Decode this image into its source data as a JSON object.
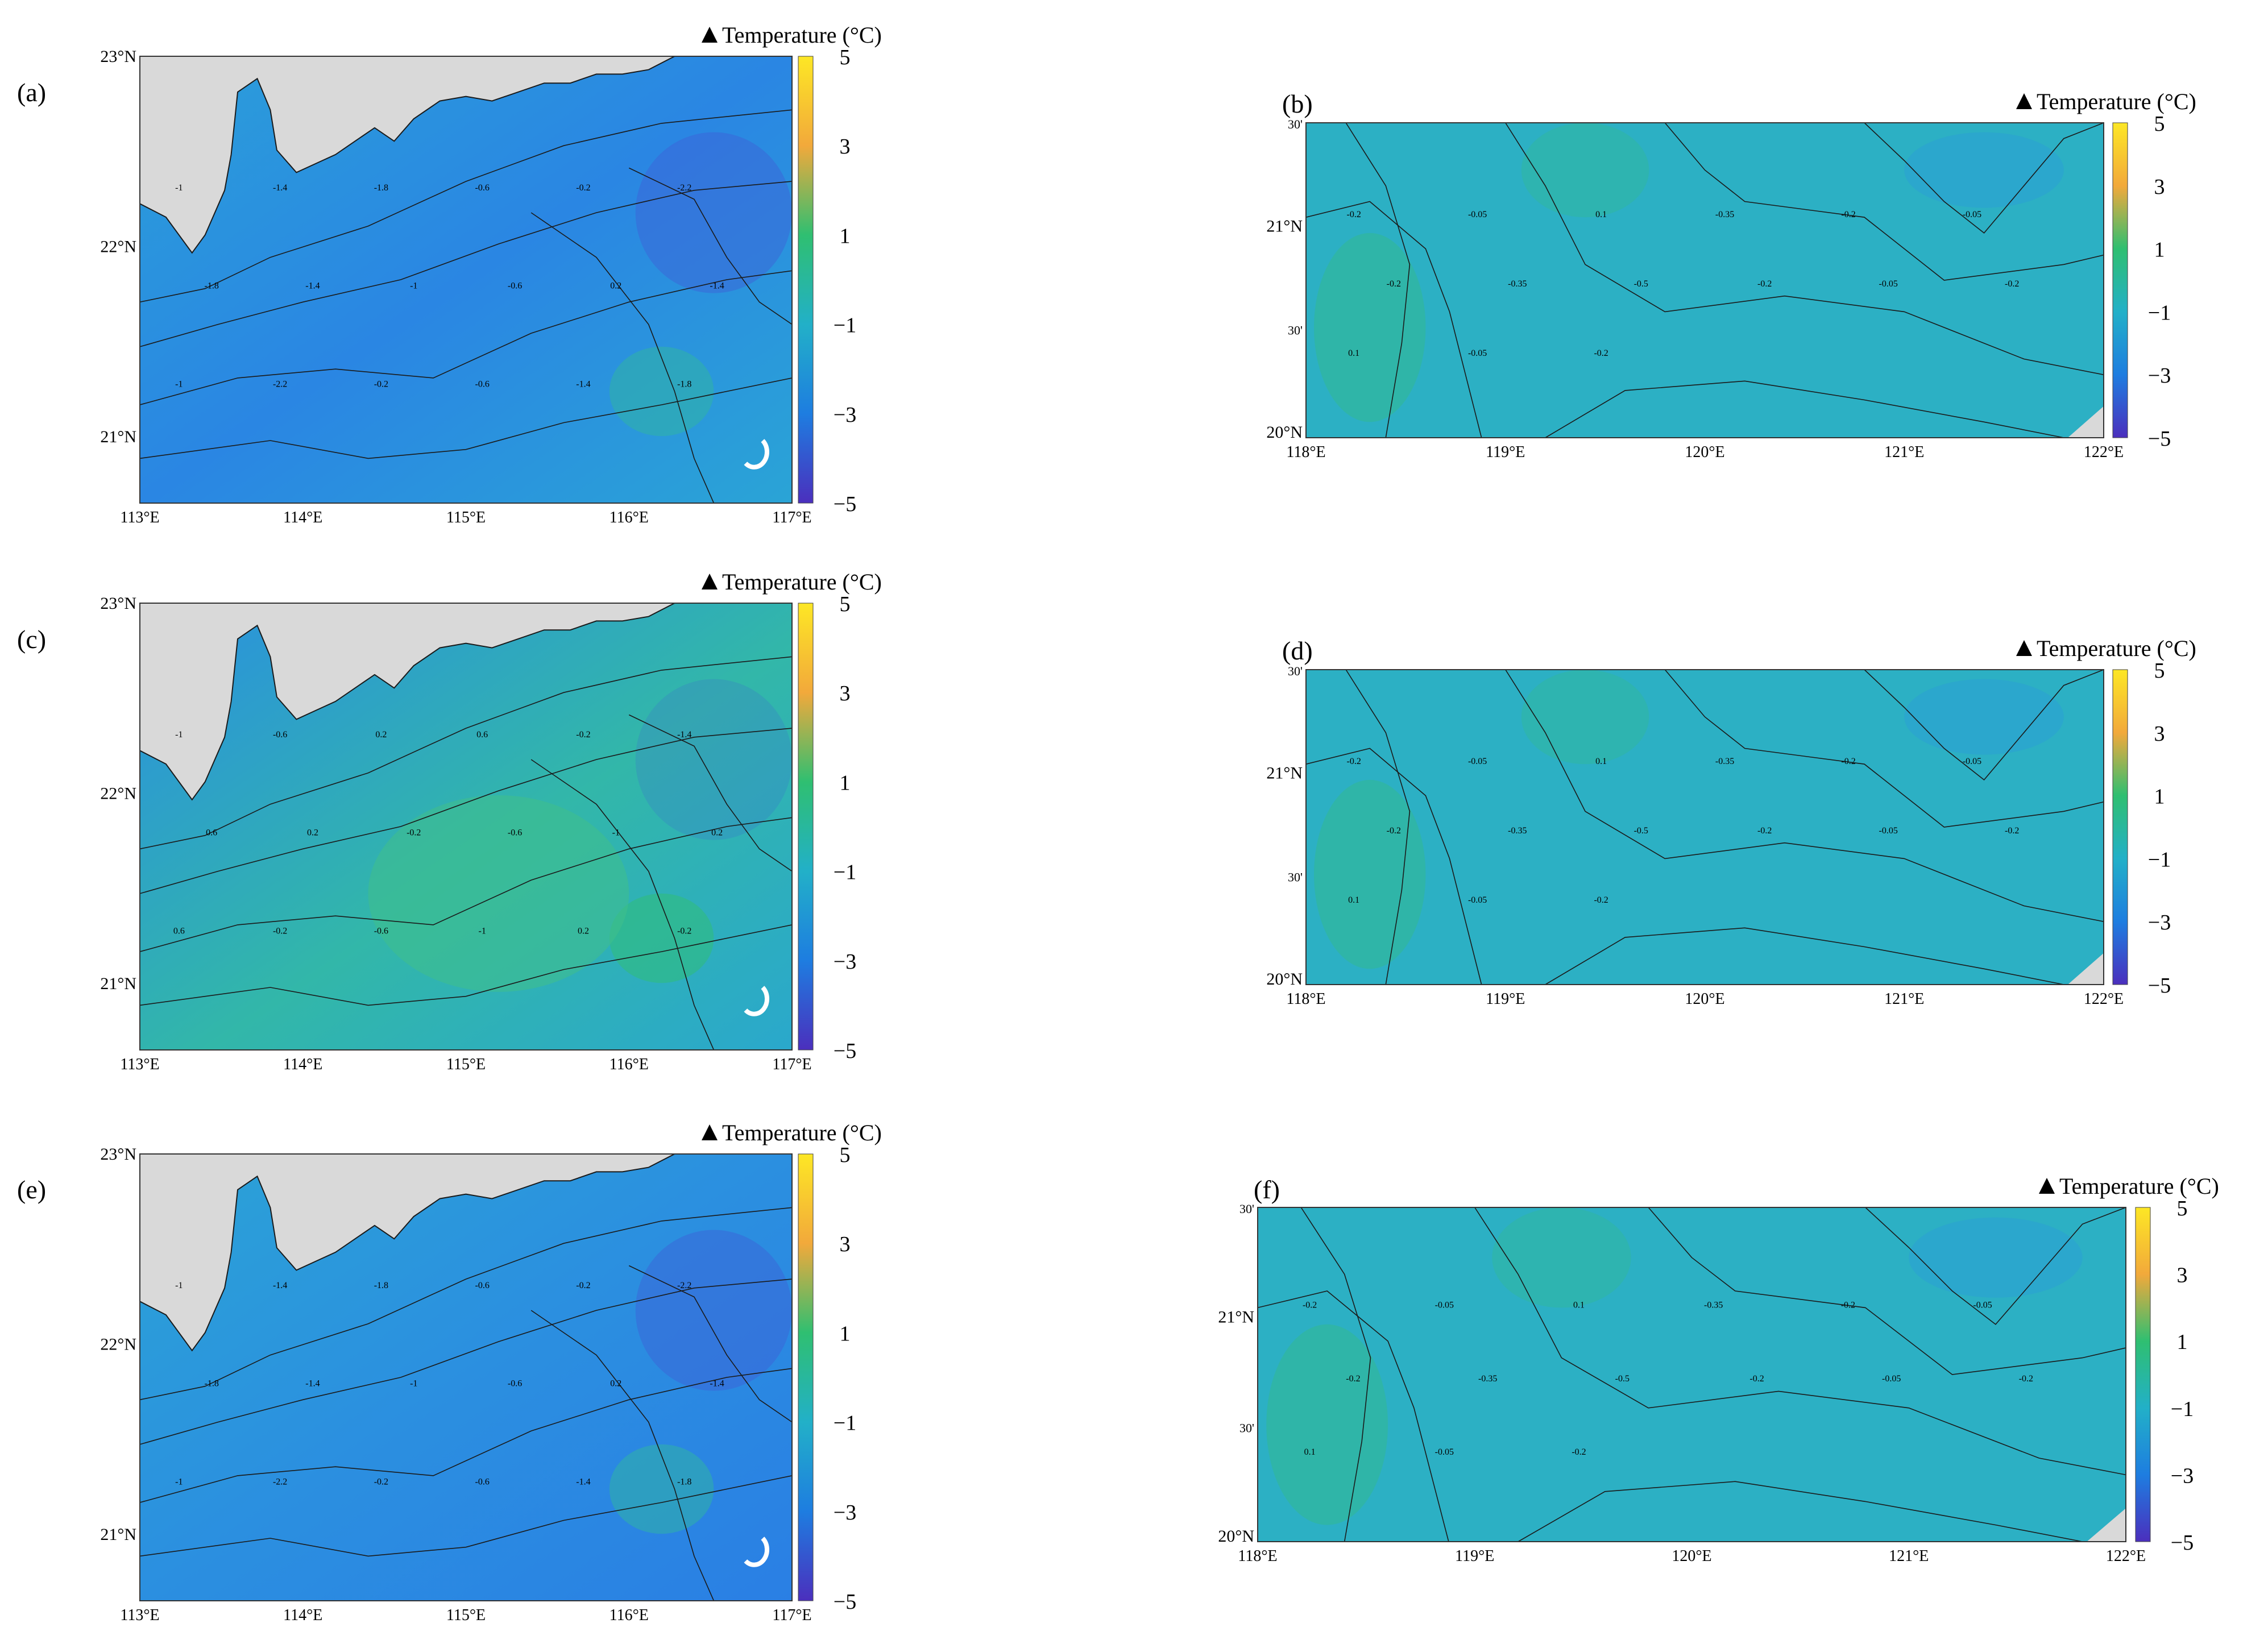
{
  "colorbar": {
    "title": "Temperature (°C)",
    "ticks": [
      "5",
      "3",
      "1",
      "−1",
      "−3",
      "−5"
    ],
    "stops": [
      "#fde725",
      "#f2a93b",
      "#2fbf71",
      "#22b0c8",
      "#1e7de0",
      "#4b2fbd"
    ]
  },
  "colors": {
    "land": "#d9d9d9",
    "water_base": "#2cafc6",
    "contour": "#1a1a1a"
  },
  "panels": [
    {
      "id": "a",
      "label": "(a)",
      "region": "south-china-coast",
      "lat_labels": [
        "23°N",
        "22°N",
        "21°N"
      ],
      "lon_labels": [
        "113°E",
        "114°E",
        "115°E",
        "116°E",
        "117°E"
      ],
      "contour_labels": [
        "-1",
        "-1.4",
        "-1.8",
        "-0.6",
        "-0.2",
        "-2.2",
        "-1.8",
        "-1.4",
        "-1",
        "-0.6",
        "0.2",
        "-1.4",
        "-1",
        "-2.2",
        "-0.2",
        "-0.6",
        "-1.4",
        "-1.8"
      ]
    },
    {
      "id": "b",
      "label": "(b)",
      "region": "taiwan-strait",
      "lat_labels": [
        "30'",
        "21°N",
        "30'",
        "20°N"
      ],
      "lon_labels": [
        "118°E",
        "119°E",
        "120°E",
        "121°E",
        "122°E"
      ],
      "contour_labels": [
        "-0.2",
        "-0.05",
        "0.1",
        "-0.35",
        "-0.2",
        "-0.05",
        "-0.2",
        "-0.35",
        "-0.5",
        "-0.2",
        "-0.05",
        "-0.2",
        "0.1",
        "-0.05",
        "-0.2"
      ]
    },
    {
      "id": "c",
      "label": "(c)",
      "region": "south-china-coast",
      "lat_labels": [
        "23°N",
        "22°N",
        "21°N"
      ],
      "lon_labels": [
        "113°E",
        "114°E",
        "115°E",
        "116°E",
        "117°E"
      ],
      "contour_labels": [
        "-1",
        "-0.6",
        "0.2",
        "0.6",
        "-0.2",
        "-1.4",
        "0.6",
        "0.2",
        "-0.2",
        "-0.6",
        "-1",
        "0.2",
        "0.6",
        "-0.2",
        "-0.6",
        "-1",
        "0.2",
        "-0.2"
      ]
    },
    {
      "id": "d",
      "label": "(d)",
      "region": "taiwan-strait",
      "lat_labels": [
        "30'",
        "21°N",
        "30'",
        "20°N"
      ],
      "lon_labels": [
        "118°E",
        "119°E",
        "120°E",
        "121°E",
        "122°E"
      ],
      "contour_labels": [
        "-0.2",
        "-0.05",
        "0.1",
        "-0.35",
        "-0.2",
        "-0.05",
        "-0.2",
        "-0.35",
        "-0.5",
        "-0.2",
        "-0.05",
        "-0.2",
        "0.1",
        "-0.05",
        "-0.2"
      ]
    },
    {
      "id": "e",
      "label": "(e)",
      "region": "south-china-coast",
      "lat_labels": [
        "23°N",
        "22°N",
        "21°N"
      ],
      "lon_labels": [
        "113°E",
        "114°E",
        "115°E",
        "116°E",
        "117°E"
      ],
      "contour_labels": [
        "-1",
        "-1.4",
        "-1.8",
        "-0.6",
        "-0.2",
        "-2.2",
        "-1.8",
        "-1.4",
        "-1",
        "-0.6",
        "0.2",
        "-1.4",
        "-1",
        "-2.2",
        "-0.2",
        "-0.6",
        "-1.4",
        "-1.8"
      ]
    },
    {
      "id": "f",
      "label": "(f)",
      "region": "taiwan-strait",
      "lat_labels": [
        "30'",
        "21°N",
        "30'",
        "20°N"
      ],
      "lon_labels": [
        "118°E",
        "119°E",
        "120°E",
        "121°E",
        "122°E"
      ],
      "contour_labels": [
        "-0.2",
        "-0.05",
        "0.1",
        "-0.35",
        "-0.2",
        "-0.05",
        "-0.2",
        "-0.35",
        "-0.5",
        "-0.2",
        "-0.05",
        "-0.2",
        "0.1",
        "-0.05",
        "-0.2"
      ]
    }
  ]
}
